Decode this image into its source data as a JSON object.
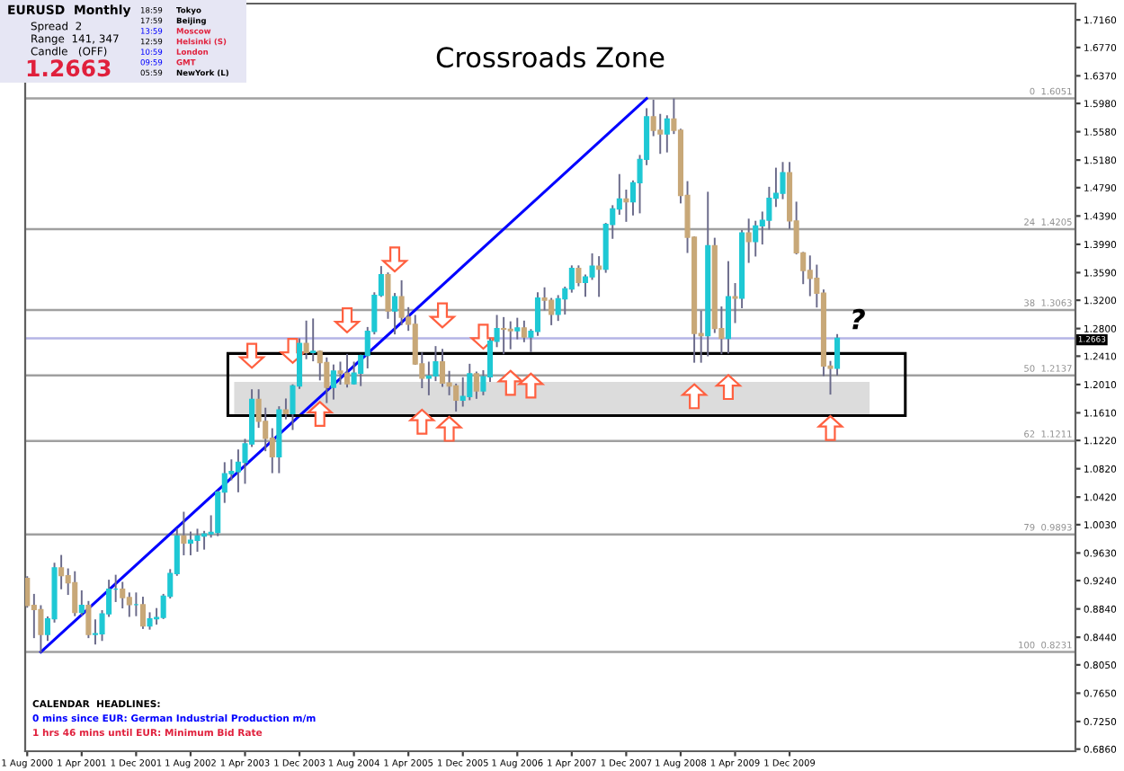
{
  "chart_data": {
    "type": "candlestick",
    "title": "Crossroads Zone",
    "x": [
      "2000-08",
      "2000-09",
      "2000-10",
      "2000-11",
      "2000-12",
      "2001-01",
      "2001-02",
      "2001-03",
      "2001-04",
      "2001-05",
      "2001-06",
      "2001-07",
      "2001-08",
      "2001-09",
      "2001-10",
      "2001-11",
      "2001-12",
      "2002-01",
      "2002-02",
      "2002-03",
      "2002-04",
      "2002-05",
      "2002-06",
      "2002-07",
      "2002-08",
      "2002-09",
      "2002-10",
      "2002-11",
      "2002-12",
      "2003-01",
      "2003-02",
      "2003-03",
      "2003-04",
      "2003-05",
      "2003-06",
      "2003-07",
      "2003-08",
      "2003-09",
      "2003-10",
      "2003-11",
      "2003-12",
      "2004-01",
      "2004-02",
      "2004-03",
      "2004-04",
      "2004-05",
      "2004-06",
      "2004-07",
      "2004-08",
      "2004-09",
      "2004-10",
      "2004-11",
      "2004-12",
      "2005-01",
      "2005-02",
      "2005-03",
      "2005-04",
      "2005-05",
      "2005-06",
      "2005-07",
      "2005-08",
      "2005-09",
      "2005-10",
      "2005-11",
      "2005-12",
      "2006-01",
      "2006-02",
      "2006-03",
      "2006-04",
      "2006-05",
      "2006-06",
      "2006-07",
      "2006-08",
      "2006-09",
      "2006-10",
      "2006-11",
      "2006-12",
      "2007-01",
      "2007-02",
      "2007-03",
      "2007-04",
      "2007-05",
      "2007-06",
      "2007-07",
      "2007-08",
      "2007-09",
      "2007-10",
      "2007-11",
      "2007-12",
      "2008-01",
      "2008-02",
      "2008-03",
      "2008-04",
      "2008-05",
      "2008-06",
      "2008-07",
      "2008-08",
      "2008-09",
      "2008-10",
      "2008-11",
      "2008-12",
      "2009-01",
      "2009-02",
      "2009-03",
      "2009-04",
      "2009-05",
      "2009-06",
      "2009-07",
      "2009-08",
      "2009-09",
      "2009-10",
      "2009-11",
      "2009-12",
      "2010-01",
      "2010-02",
      "2010-03",
      "2010-04",
      "2010-05",
      "2010-06",
      "2010-07"
    ],
    "ohlc": [
      [
        0.927,
        0.929,
        0.887,
        0.889
      ],
      [
        0.889,
        0.904,
        0.844,
        0.883
      ],
      [
        0.883,
        0.888,
        0.8231,
        0.848
      ],
      [
        0.848,
        0.872,
        0.84,
        0.87
      ],
      [
        0.87,
        0.948,
        0.866,
        0.942
      ],
      [
        0.942,
        0.959,
        0.913,
        0.931
      ],
      [
        0.931,
        0.94,
        0.905,
        0.921
      ],
      [
        0.921,
        0.936,
        0.875,
        0.879
      ],
      [
        0.879,
        0.909,
        0.876,
        0.889
      ],
      [
        0.889,
        0.894,
        0.844,
        0.848
      ],
      [
        0.848,
        0.868,
        0.835,
        0.849
      ],
      [
        0.849,
        0.881,
        0.84,
        0.877
      ],
      [
        0.877,
        0.924,
        0.874,
        0.912
      ],
      [
        0.912,
        0.931,
        0.895,
        0.912
      ],
      [
        0.912,
        0.921,
        0.886,
        0.9
      ],
      [
        0.9,
        0.906,
        0.874,
        0.89
      ],
      [
        0.89,
        0.906,
        0.875,
        0.89
      ],
      [
        0.89,
        0.9,
        0.857,
        0.86
      ],
      [
        0.86,
        0.878,
        0.856,
        0.87
      ],
      [
        0.87,
        0.884,
        0.863,
        0.872
      ],
      [
        0.872,
        0.904,
        0.871,
        0.902
      ],
      [
        0.902,
        0.939,
        0.9,
        0.934
      ],
      [
        0.934,
        0.996,
        0.932,
        0.987
      ],
      [
        0.987,
        1.02,
        0.961,
        0.977
      ],
      [
        0.977,
        0.992,
        0.961,
        0.981
      ],
      [
        0.981,
        0.996,
        0.966,
        0.987
      ],
      [
        0.987,
        0.993,
        0.969,
        0.99
      ],
      [
        0.99,
        1.015,
        0.986,
        0.992
      ],
      [
        0.992,
        1.05,
        0.988,
        1.049
      ],
      [
        1.049,
        1.09,
        1.035,
        1.075
      ],
      [
        1.075,
        1.094,
        1.067,
        1.078
      ],
      [
        1.078,
        1.108,
        1.05,
        1.091
      ],
      [
        1.091,
        1.123,
        1.062,
        1.117
      ],
      [
        1.117,
        1.193,
        1.114,
        1.18
      ],
      [
        1.18,
        1.193,
        1.141,
        1.149
      ],
      [
        1.149,
        1.167,
        1.108,
        1.125
      ],
      [
        1.125,
        1.138,
        1.077,
        1.099
      ],
      [
        1.099,
        1.169,
        1.077,
        1.165
      ],
      [
        1.165,
        1.18,
        1.153,
        1.16
      ],
      [
        1.16,
        1.2,
        1.138,
        1.199
      ],
      [
        1.199,
        1.265,
        1.196,
        1.259
      ],
      [
        1.259,
        1.29,
        1.238,
        1.246
      ],
      [
        1.246,
        1.293,
        1.235,
        1.248
      ],
      [
        1.248,
        1.248,
        1.208,
        1.232
      ],
      [
        1.232,
        1.238,
        1.176,
        1.197
      ],
      [
        1.197,
        1.228,
        1.181,
        1.22
      ],
      [
        1.22,
        1.232,
        1.202,
        1.217
      ],
      [
        1.217,
        1.243,
        1.198,
        1.202
      ],
      [
        1.202,
        1.232,
        1.202,
        1.217
      ],
      [
        1.217,
        1.242,
        1.2,
        1.242
      ],
      [
        1.242,
        1.281,
        1.225,
        1.276
      ],
      [
        1.276,
        1.33,
        1.273,
        1.327
      ],
      [
        1.327,
        1.367,
        1.326,
        1.356
      ],
      [
        1.356,
        1.358,
        1.295,
        1.305
      ],
      [
        1.305,
        1.329,
        1.273,
        1.325
      ],
      [
        1.325,
        1.347,
        1.286,
        1.296
      ],
      [
        1.296,
        1.309,
        1.278,
        1.286
      ],
      [
        1.286,
        1.298,
        1.23,
        1.23
      ],
      [
        1.23,
        1.245,
        1.197,
        1.21
      ],
      [
        1.21,
        1.232,
        1.187,
        1.213
      ],
      [
        1.213,
        1.254,
        1.207,
        1.233
      ],
      [
        1.233,
        1.25,
        1.199,
        1.203
      ],
      [
        1.203,
        1.219,
        1.187,
        1.199
      ],
      [
        1.199,
        1.201,
        1.164,
        1.179
      ],
      [
        1.179,
        1.21,
        1.171,
        1.184
      ],
      [
        1.184,
        1.229,
        1.18,
        1.216
      ],
      [
        1.216,
        1.218,
        1.182,
        1.192
      ],
      [
        1.192,
        1.22,
        1.187,
        1.212
      ],
      [
        1.212,
        1.265,
        1.206,
        1.262
      ],
      [
        1.262,
        1.298,
        1.255,
        1.28
      ],
      [
        1.28,
        1.295,
        1.245,
        1.279
      ],
      [
        1.279,
        1.289,
        1.252,
        1.277
      ],
      [
        1.277,
        1.294,
        1.266,
        1.281
      ],
      [
        1.281,
        1.29,
        1.262,
        1.268
      ],
      [
        1.268,
        1.278,
        1.248,
        1.276
      ],
      [
        1.276,
        1.33,
        1.271,
        1.323
      ],
      [
        1.323,
        1.337,
        1.307,
        1.32
      ],
      [
        1.32,
        1.322,
        1.286,
        1.3
      ],
      [
        1.3,
        1.326,
        1.292,
        1.322
      ],
      [
        1.322,
        1.338,
        1.301,
        1.336
      ],
      [
        1.336,
        1.368,
        1.332,
        1.365
      ],
      [
        1.365,
        1.368,
        1.341,
        1.345
      ],
      [
        1.345,
        1.355,
        1.326,
        1.353
      ],
      [
        1.353,
        1.385,
        1.35,
        1.368
      ],
      [
        1.368,
        1.381,
        1.326,
        1.364
      ],
      [
        1.364,
        1.428,
        1.36,
        1.427
      ],
      [
        1.427,
        1.453,
        1.408,
        1.449
      ],
      [
        1.449,
        1.497,
        1.442,
        1.463
      ],
      [
        1.463,
        1.475,
        1.432,
        1.459
      ],
      [
        1.459,
        1.488,
        1.441,
        1.486
      ],
      [
        1.486,
        1.524,
        1.444,
        1.519
      ],
      [
        1.519,
        1.59,
        1.512,
        1.579
      ],
      [
        1.579,
        1.602,
        1.553,
        1.56
      ],
      [
        1.56,
        1.582,
        1.528,
        1.555
      ],
      [
        1.555,
        1.58,
        1.53,
        1.576
      ],
      [
        1.576,
        1.6038,
        1.556,
        1.56
      ],
      [
        1.56,
        1.561,
        1.458,
        1.468
      ],
      [
        1.468,
        1.487,
        1.388,
        1.409
      ],
      [
        1.409,
        1.409,
        1.233,
        1.273
      ],
      [
        1.273,
        1.304,
        1.233,
        1.27
      ],
      [
        1.27,
        1.472,
        1.242,
        1.397
      ],
      [
        1.397,
        1.407,
        1.275,
        1.28
      ],
      [
        1.28,
        1.31,
        1.245,
        1.266
      ],
      [
        1.266,
        1.374,
        1.246,
        1.325
      ],
      [
        1.325,
        1.343,
        1.289,
        1.323
      ],
      [
        1.323,
        1.418,
        1.31,
        1.415
      ],
      [
        1.415,
        1.434,
        1.374,
        1.403
      ],
      [
        1.403,
        1.431,
        1.383,
        1.425
      ],
      [
        1.425,
        1.444,
        1.4,
        1.433
      ],
      [
        1.433,
        1.479,
        1.421,
        1.464
      ],
      [
        1.464,
        1.506,
        1.453,
        1.471
      ],
      [
        1.471,
        1.514,
        1.464,
        1.5
      ],
      [
        1.5,
        1.514,
        1.422,
        1.432
      ],
      [
        1.432,
        1.458,
        1.386,
        1.387
      ],
      [
        1.387,
        1.387,
        1.344,
        1.362
      ],
      [
        1.362,
        1.382,
        1.327,
        1.351
      ],
      [
        1.351,
        1.369,
        1.311,
        1.33
      ],
      [
        1.33,
        1.334,
        1.214,
        1.227
      ],
      [
        1.227,
        1.233,
        1.188,
        1.224
      ],
      [
        1.224,
        1.271,
        1.215,
        1.2663
      ]
    ],
    "colors": [
      "#c8a878",
      "#c8a878",
      "#c8a878",
      "#1ec8d4",
      "#1ec8d4",
      "#c8a878",
      "#c8a878",
      "#c8a878",
      "#1ec8d4",
      "#c8a878",
      "#1ec8d4",
      "#1ec8d4",
      "#1ec8d4",
      "#1ec8d4",
      "#c8a878",
      "#c8a878",
      "#1ec8d4",
      "#c8a878",
      "#1ec8d4",
      "#1ec8d4",
      "#1ec8d4",
      "#1ec8d4",
      "#1ec8d4",
      "#c8a878",
      "#1ec8d4",
      "#1ec8d4",
      "#1ec8d4",
      "#1ec8d4",
      "#1ec8d4",
      "#1ec8d4",
      "#1ec8d4",
      "#1ec8d4",
      "#1ec8d4",
      "#1ec8d4",
      "#c8a878",
      "#c8a878",
      "#c8a878",
      "#1ec8d4",
      "#c8a878",
      "#1ec8d4",
      "#1ec8d4",
      "#c8a878",
      "#1ec8d4",
      "#c8a878",
      "#c8a878",
      "#1ec8d4",
      "#c8a878",
      "#c8a878",
      "#1ec8d4",
      "#1ec8d4",
      "#1ec8d4",
      "#1ec8d4",
      "#1ec8d4",
      "#c8a878",
      "#1ec8d4",
      "#c8a878",
      "#c8a878",
      "#c8a878",
      "#c8a878",
      "#1ec8d4",
      "#1ec8d4",
      "#c8a878",
      "#c8a878",
      "#c8a878",
      "#1ec8d4",
      "#1ec8d4",
      "#c8a878",
      "#1ec8d4",
      "#1ec8d4",
      "#1ec8d4",
      "#c8a878",
      "#c8a878",
      "#1ec8d4",
      "#c8a878",
      "#1ec8d4",
      "#1ec8d4",
      "#c8a878",
      "#c8a878",
      "#1ec8d4",
      "#1ec8d4",
      "#1ec8d4",
      "#c8a878",
      "#1ec8d4",
      "#1ec8d4",
      "#c8a878",
      "#1ec8d4",
      "#1ec8d4",
      "#1ec8d4",
      "#c8a878",
      "#1ec8d4",
      "#1ec8d4",
      "#1ec8d4",
      "#c8a878",
      "#c8a878",
      "#1ec8d4",
      "#c8a878",
      "#c8a878",
      "#c8a878",
      "#c8a878",
      "#c8a878",
      "#1ec8d4",
      "#c8a878",
      "#c8a878",
      "#1ec8d4",
      "#c8a878",
      "#1ec8d4",
      "#c8a878",
      "#1ec8d4",
      "#1ec8d4",
      "#1ec8d4",
      "#1ec8d4",
      "#1ec8d4",
      "#c8a878",
      "#c8a878",
      "#c8a878",
      "#c8a878",
      "#c8a878",
      "#c8a878",
      "#c8a878",
      "#1ec8d4"
    ],
    "series": [
      {
        "type": "line",
        "color": "#0000ff",
        "x": [
          "2000-10",
          "2008-03"
        ],
        "values": [
          0.823,
          1.605
        ]
      }
    ],
    "ylim": [
      0.683,
      1.739
    ],
    "yticks": [
      {
        "value": 1.716,
        "label": "1.7160"
      },
      {
        "value": 1.677,
        "label": "1.6770"
      },
      {
        "value": 1.637,
        "label": "1.6370"
      },
      {
        "value": 1.598,
        "label": "1.5980"
      },
      {
        "value": 1.558,
        "label": "1.5580"
      },
      {
        "value": 1.518,
        "label": "1.5180"
      },
      {
        "value": 1.479,
        "label": "1.4790"
      },
      {
        "value": 1.439,
        "label": "1.4390"
      },
      {
        "value": 1.399,
        "label": "1.3990"
      },
      {
        "value": 1.359,
        "label": "1.3590"
      },
      {
        "value": 1.32,
        "label": "1.3200"
      },
      {
        "value": 1.28,
        "label": "1.2800"
      },
      {
        "value": 1.241,
        "label": "1.2410"
      },
      {
        "value": 1.201,
        "label": "1.2010"
      },
      {
        "value": 1.161,
        "label": "1.1610"
      },
      {
        "value": 1.122,
        "label": "1.1220"
      },
      {
        "value": 1.082,
        "label": "1.0820"
      },
      {
        "value": 1.042,
        "label": "1.0420"
      },
      {
        "value": 1.003,
        "label": "1.0030"
      },
      {
        "value": 0.963,
        "label": "0.9630"
      },
      {
        "value": 0.924,
        "label": "0.9240"
      },
      {
        "value": 0.884,
        "label": "0.8840"
      },
      {
        "value": 0.844,
        "label": "0.8440"
      },
      {
        "value": 0.805,
        "label": "0.8050"
      },
      {
        "value": 0.765,
        "label": "0.7650"
      },
      {
        "value": 0.725,
        "label": "0.7250"
      },
      {
        "value": 0.686,
        "label": "0.6860"
      }
    ],
    "xlim": [
      "2000-07-22",
      "2013-06"
    ],
    "xticks": [
      {
        "value": "2000-08",
        "label": "1 Aug 2000"
      },
      {
        "value": "2001-04",
        "label": "1 Apr 2001"
      },
      {
        "value": "2001-12",
        "label": "1 Dec 2001"
      },
      {
        "value": "2002-08",
        "label": "1 Aug 2002"
      },
      {
        "value": "2003-04",
        "label": "1 Apr 2003"
      },
      {
        "value": "2003-12",
        "label": "1 Dec 2003"
      },
      {
        "value": "2004-08",
        "label": "1 Aug 2004"
      },
      {
        "value": "2005-04",
        "label": "1 Apr 2005"
      },
      {
        "value": "2005-12",
        "label": "1 Dec 2005"
      },
      {
        "value": "2006-08",
        "label": "1 Aug 2006"
      },
      {
        "value": "2007-04",
        "label": "1 Apr 2007"
      },
      {
        "value": "2007-12",
        "label": "1 Dec 2007"
      },
      {
        "value": "2008-08",
        "label": "1 Aug 2008"
      },
      {
        "value": "2009-04",
        "label": "1 Apr 2009"
      },
      {
        "value": "2009-12",
        "label": "1 Dec 2009"
      }
    ],
    "ref_lines": [
      {
        "axis": "y",
        "value": 1.6051,
        "label": "0  1.6051",
        "color": "#a0a0a0"
      },
      {
        "axis": "y",
        "value": 1.4205,
        "label": "24  1.4205",
        "color": "#a0a0a0"
      },
      {
        "axis": "y",
        "value": 1.3063,
        "label": "38  1.3063",
        "color": "#a0a0a0"
      },
      {
        "axis": "y",
        "value": 1.2137,
        "label": "50  1.2137",
        "color": "#a0a0a0"
      },
      {
        "axis": "y",
        "value": 1.1211,
        "label": "62  1.1211",
        "color": "#a0a0a0"
      },
      {
        "axis": "y",
        "value": 0.9893,
        "label": "79  0.9893",
        "color": "#a0a0a0"
      },
      {
        "axis": "y",
        "value": 0.8231,
        "label": "100  0.8231",
        "color": "#a0a0a0"
      },
      {
        "axis": "y",
        "value": 1.2663,
        "label": "1.2663",
        "color": "#b4b4e6"
      }
    ],
    "annotations": [
      "EURUSD  Monthly",
      "Spread  2",
      "Range  141, 347",
      "Candle   (OFF)",
      "1.2663",
      "18:59",
      "Tokyo",
      "17:59",
      "Beijing",
      "13:59",
      "Moscow",
      "12:59",
      "Helsinki (S)",
      "10:59",
      "London",
      "09:59",
      "GMT",
      "05:59",
      "NewYork (L)",
      "CALENDAR  HEADLINES:",
      "0 mins since EUR: German Industrial Production m/m",
      "1 hrs 46 mins until EUR: Minimum Bid Rate",
      "?"
    ]
  }
}
